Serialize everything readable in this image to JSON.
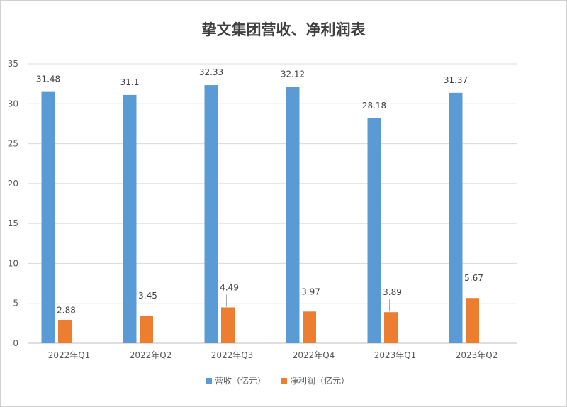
{
  "chart_data": {
    "type": "bar",
    "title": "挚文集团营收、净利润表",
    "categories": [
      "2022年Q1",
      "2022年Q2",
      "2022年Q3",
      "2022年Q4",
      "2023年Q1",
      "2023年Q2"
    ],
    "series": [
      {
        "name": "营收（亿元）",
        "values": [
          31.48,
          31.1,
          32.33,
          32.12,
          28.18,
          31.37
        ],
        "color": "#5b9bd5"
      },
      {
        "name": "净利润（亿元）",
        "values": [
          2.88,
          3.45,
          4.49,
          3.97,
          3.89,
          5.67
        ],
        "color": "#ed7d31"
      }
    ],
    "y_ticks": [
      0,
      5,
      10,
      15,
      20,
      25,
      30,
      35
    ],
    "ylim": [
      0,
      35
    ],
    "grid": true,
    "legend_position": "bottom"
  }
}
